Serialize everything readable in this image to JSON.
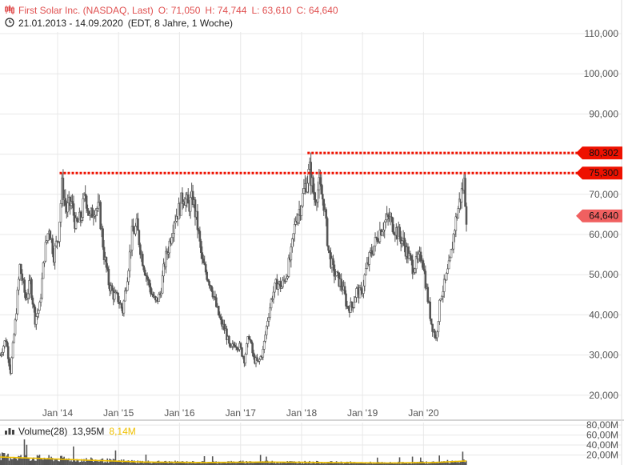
{
  "header": {
    "instrument": "First Solar Inc. (NASDAQ, Last)",
    "open": "O: 71,050",
    "high": "H: 74,744",
    "low": "L: 63,610",
    "close": "C: 64,640",
    "range": "21.01.2013 - 14.09.2020",
    "period": "(EDT, 8 Jahre, 1 Woche)"
  },
  "volume_legend": {
    "label": "Volume(28)",
    "value": "13,95M",
    "ma_value": "8,14M"
  },
  "colors": {
    "price_label": "#e05050",
    "candles": "#555555",
    "level_line": "#ee1100",
    "current_badge": "#f06060",
    "volume_ma": "#f0c000",
    "grid": "#e8e8e8"
  },
  "chart_data": [
    {
      "type": "candlestick",
      "title": "First Solar Inc. (NASDAQ, Last)",
      "x_ticks": [
        "Jan '14",
        "Jan '15",
        "Jan '16",
        "Jan '17",
        "Jan '18",
        "Jan '19",
        "Jan '20"
      ],
      "y_ticks": [
        "110,000",
        "100,000",
        "90,000",
        "80,000",
        "70,000",
        "60,000",
        "50,000",
        "40,000",
        "30,000",
        "20,000"
      ],
      "ylim": [
        15,
        112
      ],
      "xlim": [
        "2013-01-21",
        "2020-09-14"
      ],
      "levels": [
        {
          "label": "80,302",
          "value": 80.302,
          "from": "2018-02-05"
        },
        {
          "label": "75,300",
          "value": 75.3,
          "from": "2014-01-13"
        }
      ],
      "current": {
        "label": "64,640",
        "value": 64.64
      },
      "close_series": [
        [
          "2013-01-21",
          30
        ],
        [
          "2013-02-25",
          34
        ],
        [
          "2013-03-25",
          26
        ],
        [
          "2013-04-22",
          38
        ],
        [
          "2013-05-20",
          52
        ],
        [
          "2013-06-24",
          44
        ],
        [
          "2013-07-22",
          48
        ],
        [
          "2013-08-19",
          39
        ],
        [
          "2013-09-16",
          42
        ],
        [
          "2013-10-14",
          55
        ],
        [
          "2013-11-11",
          62
        ],
        [
          "2013-12-09",
          55
        ],
        [
          "2014-01-06",
          60
        ],
        [
          "2014-01-27",
          72
        ],
        [
          "2014-02-24",
          66
        ],
        [
          "2014-03-24",
          68
        ],
        [
          "2014-04-21",
          62
        ],
        [
          "2014-05-19",
          64
        ],
        [
          "2014-06-16",
          70
        ],
        [
          "2014-07-14",
          64
        ],
        [
          "2014-08-11",
          67
        ],
        [
          "2014-09-08",
          66
        ],
        [
          "2014-10-06",
          55
        ],
        [
          "2014-11-03",
          48
        ],
        [
          "2014-12-01",
          45
        ],
        [
          "2014-12-29",
          44
        ],
        [
          "2015-01-26",
          41
        ],
        [
          "2015-02-23",
          50
        ],
        [
          "2015-03-23",
          60
        ],
        [
          "2015-04-20",
          62
        ],
        [
          "2015-05-18",
          55
        ],
        [
          "2015-06-15",
          50
        ],
        [
          "2015-07-13",
          46
        ],
        [
          "2015-08-10",
          43
        ],
        [
          "2015-09-07",
          45
        ],
        [
          "2015-10-05",
          53
        ],
        [
          "2015-11-02",
          58
        ],
        [
          "2015-11-30",
          64
        ],
        [
          "2015-12-28",
          66
        ],
        [
          "2016-01-25",
          70
        ],
        [
          "2016-02-22",
          67
        ],
        [
          "2016-03-21",
          69
        ],
        [
          "2016-04-18",
          62
        ],
        [
          "2016-05-16",
          53
        ],
        [
          "2016-06-13",
          50
        ],
        [
          "2016-07-11",
          47
        ],
        [
          "2016-08-08",
          42
        ],
        [
          "2016-09-05",
          38
        ],
        [
          "2016-10-03",
          36
        ],
        [
          "2016-10-31",
          31
        ],
        [
          "2016-11-28",
          33
        ],
        [
          "2016-12-26",
          32
        ],
        [
          "2017-01-23",
          29
        ],
        [
          "2017-02-20",
          35
        ],
        [
          "2017-03-20",
          29
        ],
        [
          "2017-04-17",
          28
        ],
        [
          "2017-05-15",
          31
        ],
        [
          "2017-06-12",
          39
        ],
        [
          "2017-07-10",
          45
        ],
        [
          "2017-08-07",
          48
        ],
        [
          "2017-09-04",
          47
        ],
        [
          "2017-10-02",
          50
        ],
        [
          "2017-10-30",
          55
        ],
        [
          "2017-11-27",
          64
        ],
        [
          "2017-12-25",
          67
        ],
        [
          "2018-01-22",
          72
        ],
        [
          "2018-02-19",
          76
        ],
        [
          "2018-03-19",
          69
        ],
        [
          "2018-04-16",
          72
        ],
        [
          "2018-05-14",
          68
        ],
        [
          "2018-06-11",
          56
        ],
        [
          "2018-07-09",
          51
        ],
        [
          "2018-08-06",
          49
        ],
        [
          "2018-09-03",
          47
        ],
        [
          "2018-10-01",
          42
        ],
        [
          "2018-10-29",
          42
        ],
        [
          "2018-11-26",
          46
        ],
        [
          "2018-12-24",
          45
        ],
        [
          "2019-01-21",
          51
        ],
        [
          "2019-02-18",
          55
        ],
        [
          "2019-03-18",
          58
        ],
        [
          "2019-04-15",
          61
        ],
        [
          "2019-05-13",
          63
        ],
        [
          "2019-06-10",
          64
        ],
        [
          "2019-07-08",
          62
        ],
        [
          "2019-08-05",
          60
        ],
        [
          "2019-09-02",
          58
        ],
        [
          "2019-09-30",
          55
        ],
        [
          "2019-10-28",
          52
        ],
        [
          "2019-11-25",
          53
        ],
        [
          "2019-12-23",
          55
        ],
        [
          "2020-01-20",
          46
        ],
        [
          "2020-02-17",
          38
        ],
        [
          "2020-03-16",
          34
        ],
        [
          "2020-04-13",
          45
        ],
        [
          "2020-05-11",
          48
        ],
        [
          "2020-06-08",
          53
        ],
        [
          "2020-07-06",
          62
        ],
        [
          "2020-08-03",
          68
        ],
        [
          "2020-08-31",
          73
        ],
        [
          "2020-09-14",
          64.64
        ]
      ]
    },
    {
      "type": "bar",
      "title": "Volume(28)",
      "y_ticks": [
        "80,00M",
        "60,00M",
        "40,00M",
        "20,00M"
      ],
      "ylim": [
        0,
        85
      ],
      "volume_ma_series": [
        [
          "2013-01-21",
          16
        ],
        [
          "2013-10-01",
          13
        ],
        [
          "2014-06-01",
          10
        ],
        [
          "2015-06-01",
          6
        ],
        [
          "2016-06-01",
          5
        ],
        [
          "2017-06-01",
          6
        ],
        [
          "2018-06-01",
          5
        ],
        [
          "2019-06-01",
          4
        ],
        [
          "2020-03-01",
          5
        ],
        [
          "2020-09-14",
          8.14
        ]
      ]
    }
  ]
}
